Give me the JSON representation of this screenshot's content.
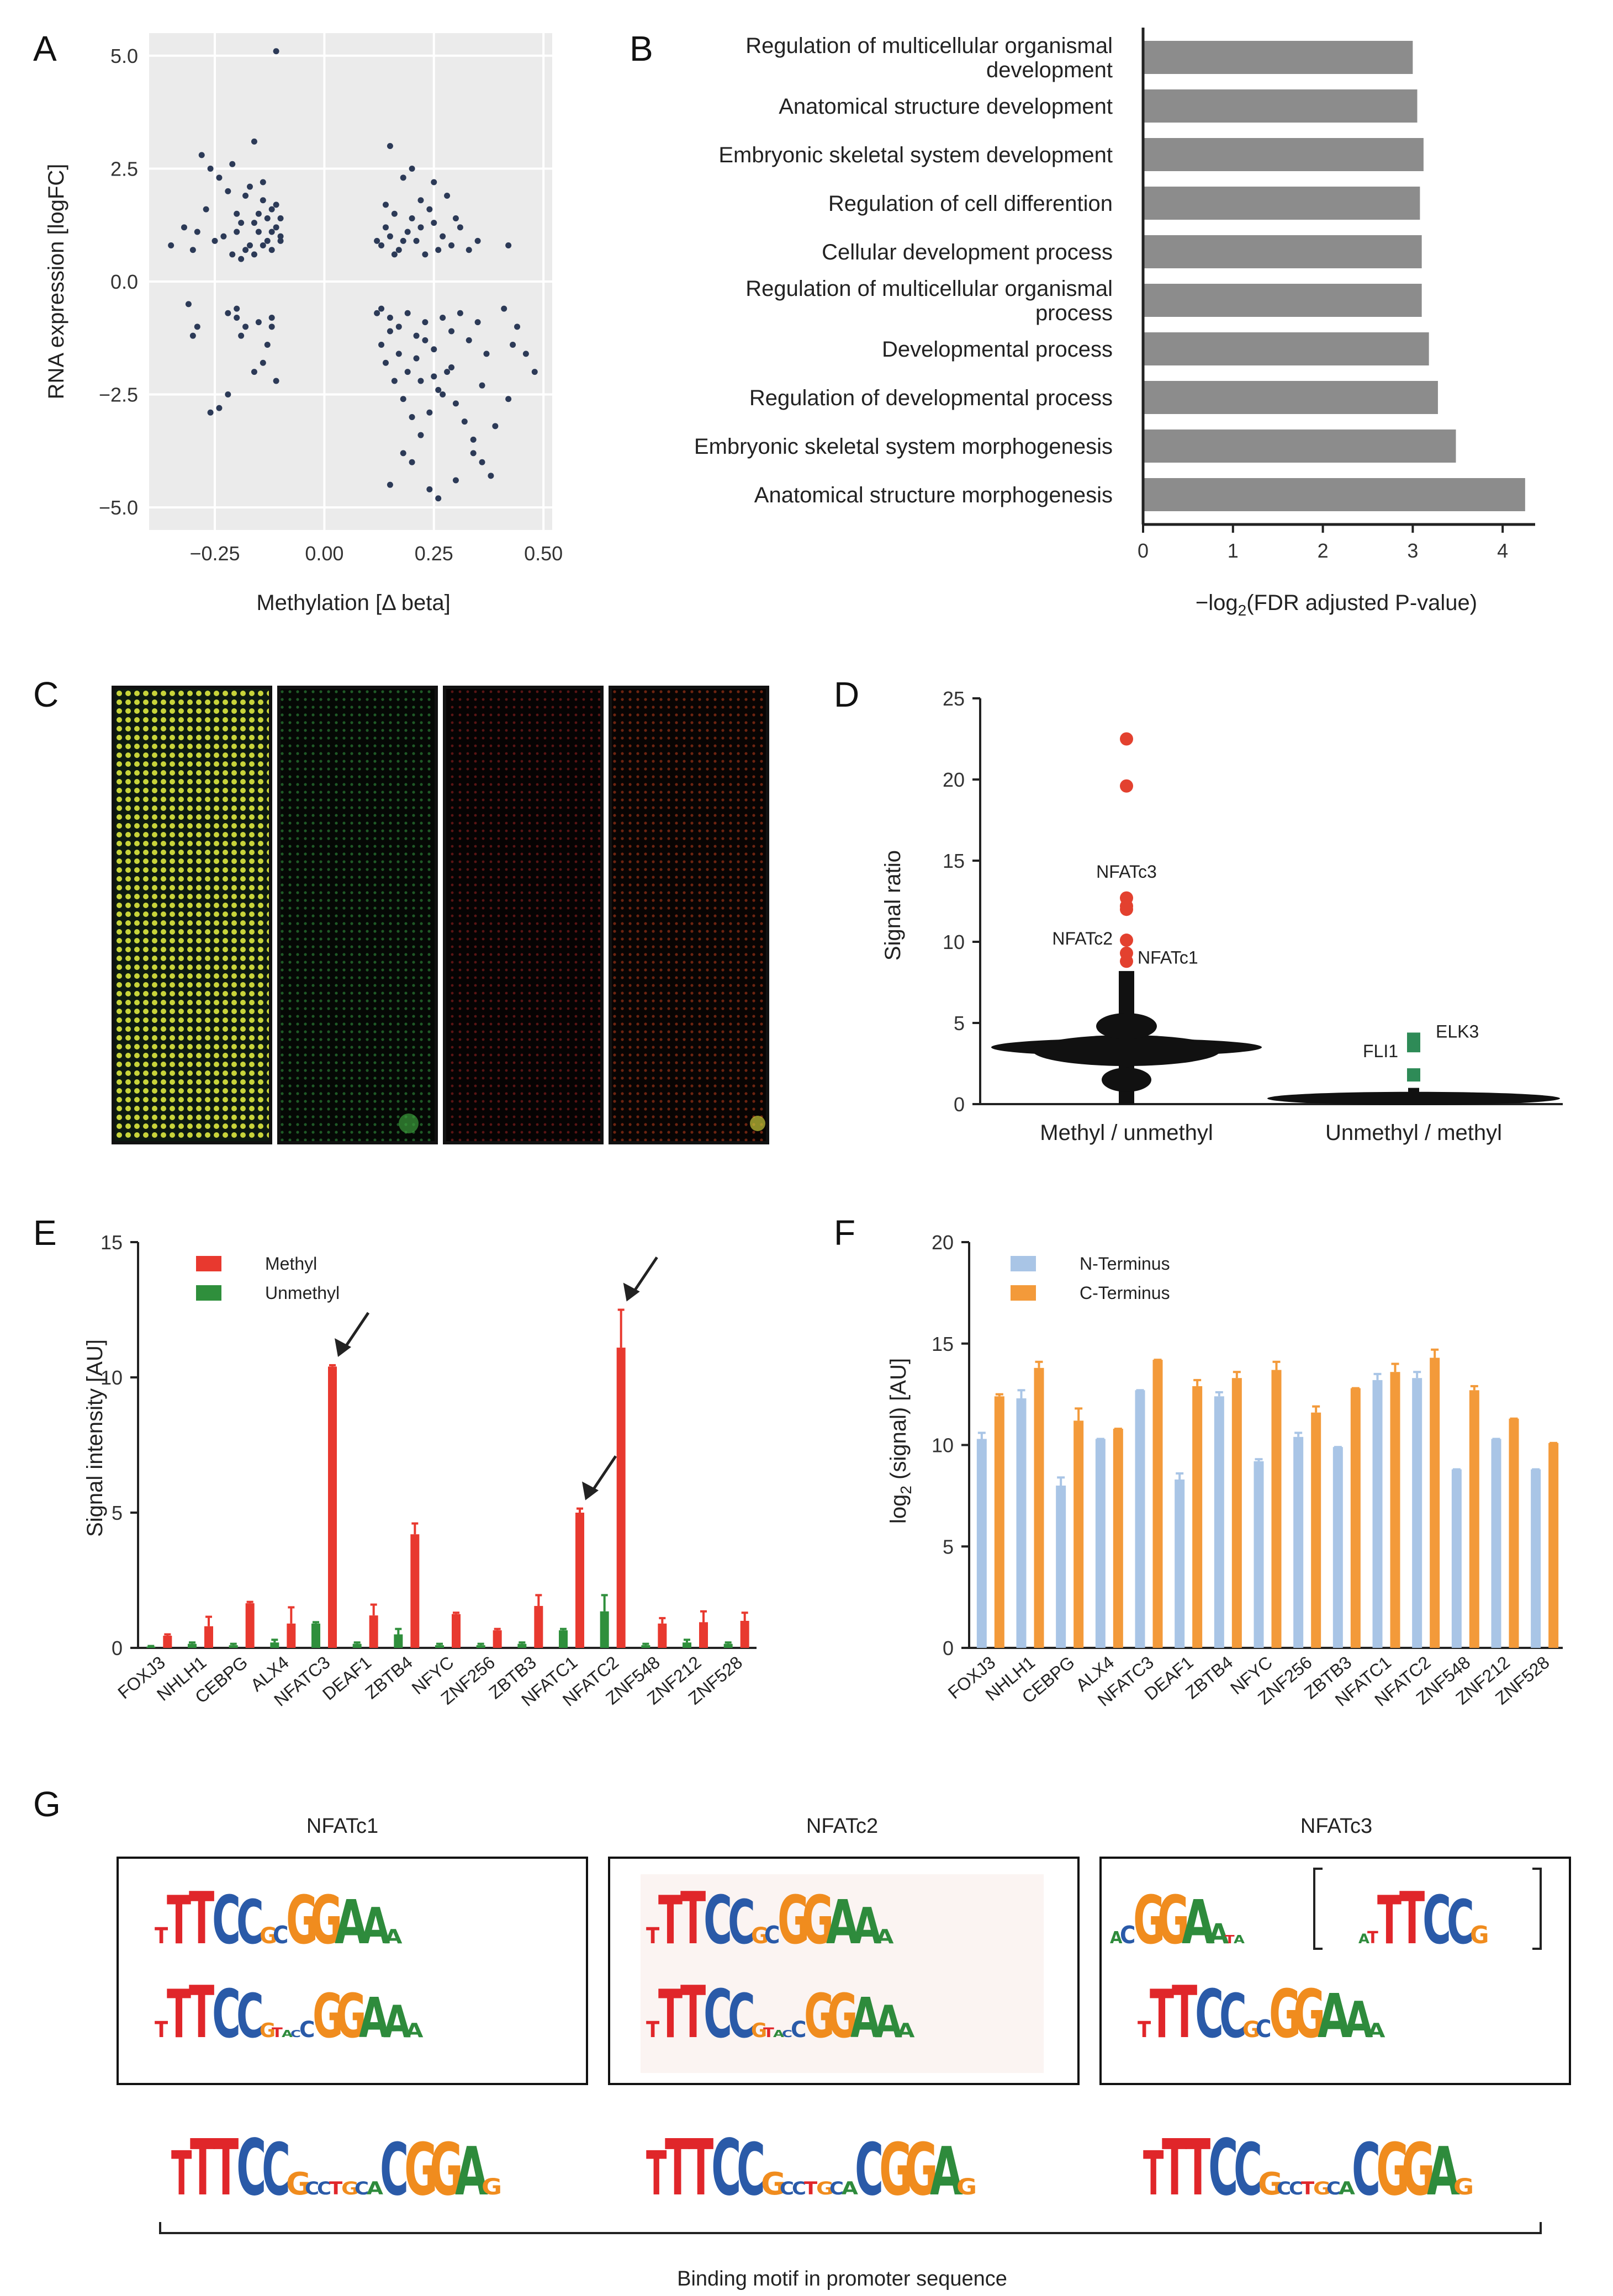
{
  "panel_labels": [
    "A",
    "B",
    "C",
    "D",
    "E",
    "F",
    "G"
  ],
  "colors": {
    "scatter_bg": "#ebebeb",
    "scatter_dot": "#2c3a57",
    "bar_gray": "#8c8c8c",
    "red": "#e8392f",
    "green": "#2f8f3c",
    "d_red": "#e3412f",
    "d_green": "#2e8b57",
    "f_blue": "#a9c5e6",
    "f_orange": "#f39a3a",
    "logo_A": "#2e8b3c",
    "logo_C": "#2a5aa8",
    "logo_G": "#f08c1e",
    "logo_T": "#e0262a"
  },
  "chart_data": [
    {
      "id": "A",
      "type": "scatter",
      "title": "",
      "xlabel": "Methylation [Δ beta]",
      "ylabel": "RNA expression [logFC]",
      "xlim": [
        -0.4,
        0.52
      ],
      "ylim": [
        -5.5,
        5.5
      ],
      "xticks": [
        -0.25,
        0.0,
        0.25,
        0.5
      ],
      "xtick_labels": [
        "−0.25",
        "0.00",
        "0.25",
        "0.50"
      ],
      "yticks": [
        -5.0,
        -2.5,
        0.0,
        2.5,
        5.0
      ],
      "ytick_labels": [
        "−5.0",
        "−2.5",
        "0.0",
        "2.5",
        "5.0"
      ],
      "grid": true,
      "points": [
        [
          -0.11,
          5.1
        ],
        [
          -0.28,
          2.8
        ],
        [
          -0.16,
          3.1
        ],
        [
          -0.14,
          2.2
        ],
        [
          -0.2,
          1.5
        ],
        [
          -0.18,
          1.9
        ],
        [
          -0.13,
          1.4
        ],
        [
          -0.11,
          1.2
        ],
        [
          -0.1,
          0.9
        ],
        [
          -0.12,
          0.7
        ],
        [
          -0.15,
          1.1
        ],
        [
          -0.17,
          0.8
        ],
        [
          -0.19,
          1.3
        ],
        [
          -0.21,
          0.6
        ],
        [
          -0.23,
          1.0
        ],
        [
          -0.25,
          0.9
        ],
        [
          -0.27,
          1.6
        ],
        [
          -0.3,
          0.7
        ],
        [
          -0.32,
          1.2
        ],
        [
          -0.35,
          0.8
        ],
        [
          -0.24,
          2.3
        ],
        [
          -0.22,
          2.0
        ],
        [
          -0.14,
          1.8
        ],
        [
          -0.12,
          1.6
        ],
        [
          -0.1,
          1.4
        ],
        [
          -0.16,
          0.6
        ],
        [
          -0.18,
          0.7
        ],
        [
          -0.2,
          1.1
        ],
        [
          -0.13,
          0.9
        ],
        [
          -0.15,
          1.5
        ],
        [
          -0.11,
          1.7
        ],
        [
          -0.26,
          2.5
        ],
        [
          -0.29,
          1.1
        ],
        [
          -0.21,
          2.6
        ],
        [
          -0.17,
          2.1
        ],
        [
          -0.19,
          0.5
        ],
        [
          -0.12,
          1.1
        ],
        [
          -0.14,
          0.8
        ],
        [
          -0.1,
          1.0
        ],
        [
          -0.16,
          1.3
        ],
        [
          -0.31,
          -0.5
        ],
        [
          -0.29,
          -1.0
        ],
        [
          -0.3,
          -1.2
        ],
        [
          -0.22,
          -0.7
        ],
        [
          -0.2,
          -0.8
        ],
        [
          -0.18,
          -1.0
        ],
        [
          -0.15,
          -0.9
        ],
        [
          -0.13,
          -1.4
        ],
        [
          -0.12,
          -0.8
        ],
        [
          -0.11,
          -2.2
        ],
        [
          -0.14,
          -1.8
        ],
        [
          -0.16,
          -2.0
        ],
        [
          -0.22,
          -2.5
        ],
        [
          -0.24,
          -2.8
        ],
        [
          -0.26,
          -2.9
        ],
        [
          -0.19,
          -1.2
        ],
        [
          -0.2,
          -0.6
        ],
        [
          -0.12,
          -1.0
        ],
        [
          0.15,
          3.0
        ],
        [
          0.2,
          2.5
        ],
        [
          0.25,
          2.2
        ],
        [
          0.22,
          1.8
        ],
        [
          0.18,
          2.3
        ],
        [
          0.16,
          1.5
        ],
        [
          0.14,
          1.2
        ],
        [
          0.13,
          0.8
        ],
        [
          0.15,
          1.0
        ],
        [
          0.17,
          0.7
        ],
        [
          0.19,
          1.1
        ],
        [
          0.21,
          0.9
        ],
        [
          0.23,
          0.6
        ],
        [
          0.25,
          1.3
        ],
        [
          0.27,
          1.0
        ],
        [
          0.29,
          0.8
        ],
        [
          0.31,
          1.2
        ],
        [
          0.33,
          0.7
        ],
        [
          0.35,
          0.9
        ],
        [
          0.24,
          1.6
        ],
        [
          0.28,
          1.9
        ],
        [
          0.3,
          1.4
        ],
        [
          0.2,
          1.4
        ],
        [
          0.16,
          0.6
        ],
        [
          0.18,
          0.9
        ],
        [
          0.14,
          1.7
        ],
        [
          0.22,
          1.2
        ],
        [
          0.26,
          0.7
        ],
        [
          0.12,
          0.9
        ],
        [
          0.42,
          0.8
        ],
        [
          0.13,
          -0.6
        ],
        [
          0.15,
          -0.8
        ],
        [
          0.17,
          -1.0
        ],
        [
          0.19,
          -0.7
        ],
        [
          0.21,
          -1.2
        ],
        [
          0.23,
          -0.9
        ],
        [
          0.25,
          -1.5
        ],
        [
          0.27,
          -0.8
        ],
        [
          0.29,
          -1.1
        ],
        [
          0.31,
          -0.7
        ],
        [
          0.33,
          -1.3
        ],
        [
          0.35,
          -0.9
        ],
        [
          0.37,
          -1.6
        ],
        [
          0.14,
          -1.8
        ],
        [
          0.16,
          -2.2
        ],
        [
          0.18,
          -2.6
        ],
        [
          0.2,
          -3.0
        ],
        [
          0.22,
          -3.4
        ],
        [
          0.24,
          -2.9
        ],
        [
          0.26,
          -2.4
        ],
        [
          0.28,
          -2.0
        ],
        [
          0.3,
          -2.7
        ],
        [
          0.32,
          -3.1
        ],
        [
          0.34,
          -3.5
        ],
        [
          0.36,
          -4.0
        ],
        [
          0.38,
          -4.3
        ],
        [
          0.15,
          -4.5
        ],
        [
          0.2,
          -4.0
        ],
        [
          0.24,
          -4.6
        ],
        [
          0.26,
          -4.8
        ],
        [
          0.3,
          -4.4
        ],
        [
          0.34,
          -3.8
        ],
        [
          0.18,
          -3.8
        ],
        [
          0.22,
          -2.2
        ],
        [
          0.12,
          -0.7
        ],
        [
          0.13,
          -1.4
        ],
        [
          0.15,
          -1.1
        ],
        [
          0.17,
          -1.6
        ],
        [
          0.19,
          -2.0
        ],
        [
          0.21,
          -1.7
        ],
        [
          0.23,
          -1.3
        ],
        [
          0.25,
          -2.1
        ],
        [
          0.27,
          -2.5
        ],
        [
          0.29,
          -1.9
        ],
        [
          0.41,
          -0.6
        ],
        [
          0.44,
          -1.0
        ],
        [
          0.46,
          -1.6
        ],
        [
          0.48,
          -2.0
        ],
        [
          0.42,
          -2.6
        ],
        [
          0.43,
          -1.4
        ],
        [
          0.39,
          -3.2
        ],
        [
          0.36,
          -2.3
        ]
      ]
    },
    {
      "id": "B",
      "type": "bar",
      "orientation": "horizontal",
      "xlabel": "−log2(FDR adjusted P-value)",
      "xlim": [
        0,
        4.3
      ],
      "xticks": [
        0,
        1,
        2,
        3,
        4
      ],
      "xtick_labels": [
        "0",
        "1",
        "2",
        "3",
        "4"
      ],
      "categories": [
        "Regulation of multicellular organismal\ndevelopment",
        "Anatomical structure development",
        "Embryonic skeletal system development",
        "Regulation of cell differention",
        "Cellular development process",
        "Regulation of multicellular organismal\nprocess",
        "Developmental process",
        "Regulation of developmental process",
        "Embryonic skeletal system morphogenesis",
        "Anatomical structure morphogenesis"
      ],
      "values": [
        3.0,
        3.05,
        3.12,
        3.08,
        3.1,
        3.1,
        3.18,
        3.28,
        3.48,
        4.25
      ]
    },
    {
      "id": "D",
      "type": "scatter",
      "ylabel": "Signal ratio",
      "ylim": [
        0,
        25
      ],
      "yticks": [
        0,
        5,
        10,
        15,
        20,
        25
      ],
      "ytick_labels": [
        "0",
        "5",
        "10",
        "15",
        "20",
        "25"
      ],
      "categories": [
        "Methyl / unmethyl",
        "Unmethyl / methyl"
      ],
      "outliers_red": [
        22.5,
        19.6,
        12.7,
        12.2,
        12.0,
        10.1,
        9.3,
        8.8
      ],
      "outliers_green": [
        4.0,
        3.6,
        1.8
      ],
      "annotations": [
        {
          "text": "NFATc3",
          "value": 13.6
        },
        {
          "text": "NFATc2",
          "value": 10.1
        },
        {
          "text": "NFATc1",
          "value": 9.0
        },
        {
          "text": "FLI1",
          "value": 3.3
        },
        {
          "text": "ELK3",
          "value": 4.5
        }
      ]
    },
    {
      "id": "E",
      "type": "bar",
      "ylabel": "Signal intensity  [AU]",
      "ylim": [
        0,
        15
      ],
      "yticks": [
        0,
        5,
        10,
        15
      ],
      "ytick_labels": [
        "0",
        "5",
        "10",
        "15"
      ],
      "categories": [
        "FOXJ3",
        "NHLH1",
        "CEBPG",
        "ALX4",
        "NFATC3",
        "DEAF1",
        "ZBTB4",
        "NFYC",
        "ZNF256",
        "ZBTB3",
        "NFATC1",
        "NFATC2",
        "ZNF548",
        "ZNF212",
        "ZNF528"
      ],
      "series": [
        {
          "name": "Methyl",
          "values": [
            0.45,
            0.8,
            1.65,
            0.9,
            10.4,
            1.2,
            4.2,
            1.25,
            0.65,
            1.55,
            5.0,
            11.1,
            0.9,
            0.95,
            1.0
          ],
          "errors": [
            0.05,
            0.35,
            0.05,
            0.6,
            0.05,
            0.4,
            0.4,
            0.05,
            0.05,
            0.4,
            0.15,
            1.4,
            0.2,
            0.4,
            0.3
          ]
        },
        {
          "name": "Unmethyl",
          "values": [
            0.05,
            0.15,
            0.1,
            0.2,
            0.9,
            0.15,
            0.5,
            0.1,
            0.1,
            0.15,
            0.65,
            1.35,
            0.1,
            0.2,
            0.15
          ],
          "errors": [
            0.02,
            0.05,
            0.05,
            0.1,
            0.05,
            0.05,
            0.2,
            0.05,
            0.05,
            0.05,
            0.05,
            0.6,
            0.05,
            0.1,
            0.05
          ]
        }
      ],
      "arrows_on": [
        "NFATC3",
        "NFATC1",
        "NFATC2"
      ]
    },
    {
      "id": "F",
      "type": "bar",
      "ylabel": "log2 (signal)  [AU]",
      "ylim": [
        0,
        20
      ],
      "yticks": [
        0,
        5,
        10,
        15,
        20
      ],
      "ytick_labels": [
        "0",
        "5",
        "10",
        "15",
        "20"
      ],
      "categories": [
        "FOXJ3",
        "NHLH1",
        "CEBPG",
        "ALX4",
        "NFATC3",
        "DEAF1",
        "ZBTB4",
        "NFYC",
        "ZNF256",
        "ZBTB3",
        "NFATC1",
        "NFATC2",
        "ZNF548",
        "ZNF212",
        "ZNF528"
      ],
      "series": [
        {
          "name": "N-Terminus",
          "values": [
            10.3,
            12.3,
            8.0,
            10.3,
            12.7,
            8.3,
            12.4,
            9.2,
            10.4,
            9.9,
            13.2,
            13.3,
            8.8,
            10.3,
            8.8
          ],
          "errors": [
            0.3,
            0.4,
            0.4,
            0.0,
            0.0,
            0.3,
            0.2,
            0.1,
            0.2,
            0.0,
            0.3,
            0.3,
            0.0,
            0.0,
            0.0
          ]
        },
        {
          "name": "C-Terminus",
          "values": [
            12.4,
            13.8,
            11.2,
            10.8,
            14.2,
            12.9,
            13.3,
            13.7,
            11.6,
            12.8,
            13.6,
            14.3,
            12.7,
            11.3,
            10.1
          ],
          "errors": [
            0.1,
            0.3,
            0.6,
            0.0,
            0.0,
            0.3,
            0.3,
            0.4,
            0.3,
            0.0,
            0.4,
            0.4,
            0.2,
            0.0,
            0.0
          ]
        }
      ]
    }
  ],
  "panel_g": {
    "titles": [
      "NFATc1",
      "NFATc2",
      "NFATc3"
    ],
    "caption": "Binding motif in promoter sequence"
  },
  "legends": {
    "E": [
      "Methyl",
      "Unmethyl"
    ],
    "F": [
      "N-Terminus",
      "C-Terminus"
    ]
  }
}
